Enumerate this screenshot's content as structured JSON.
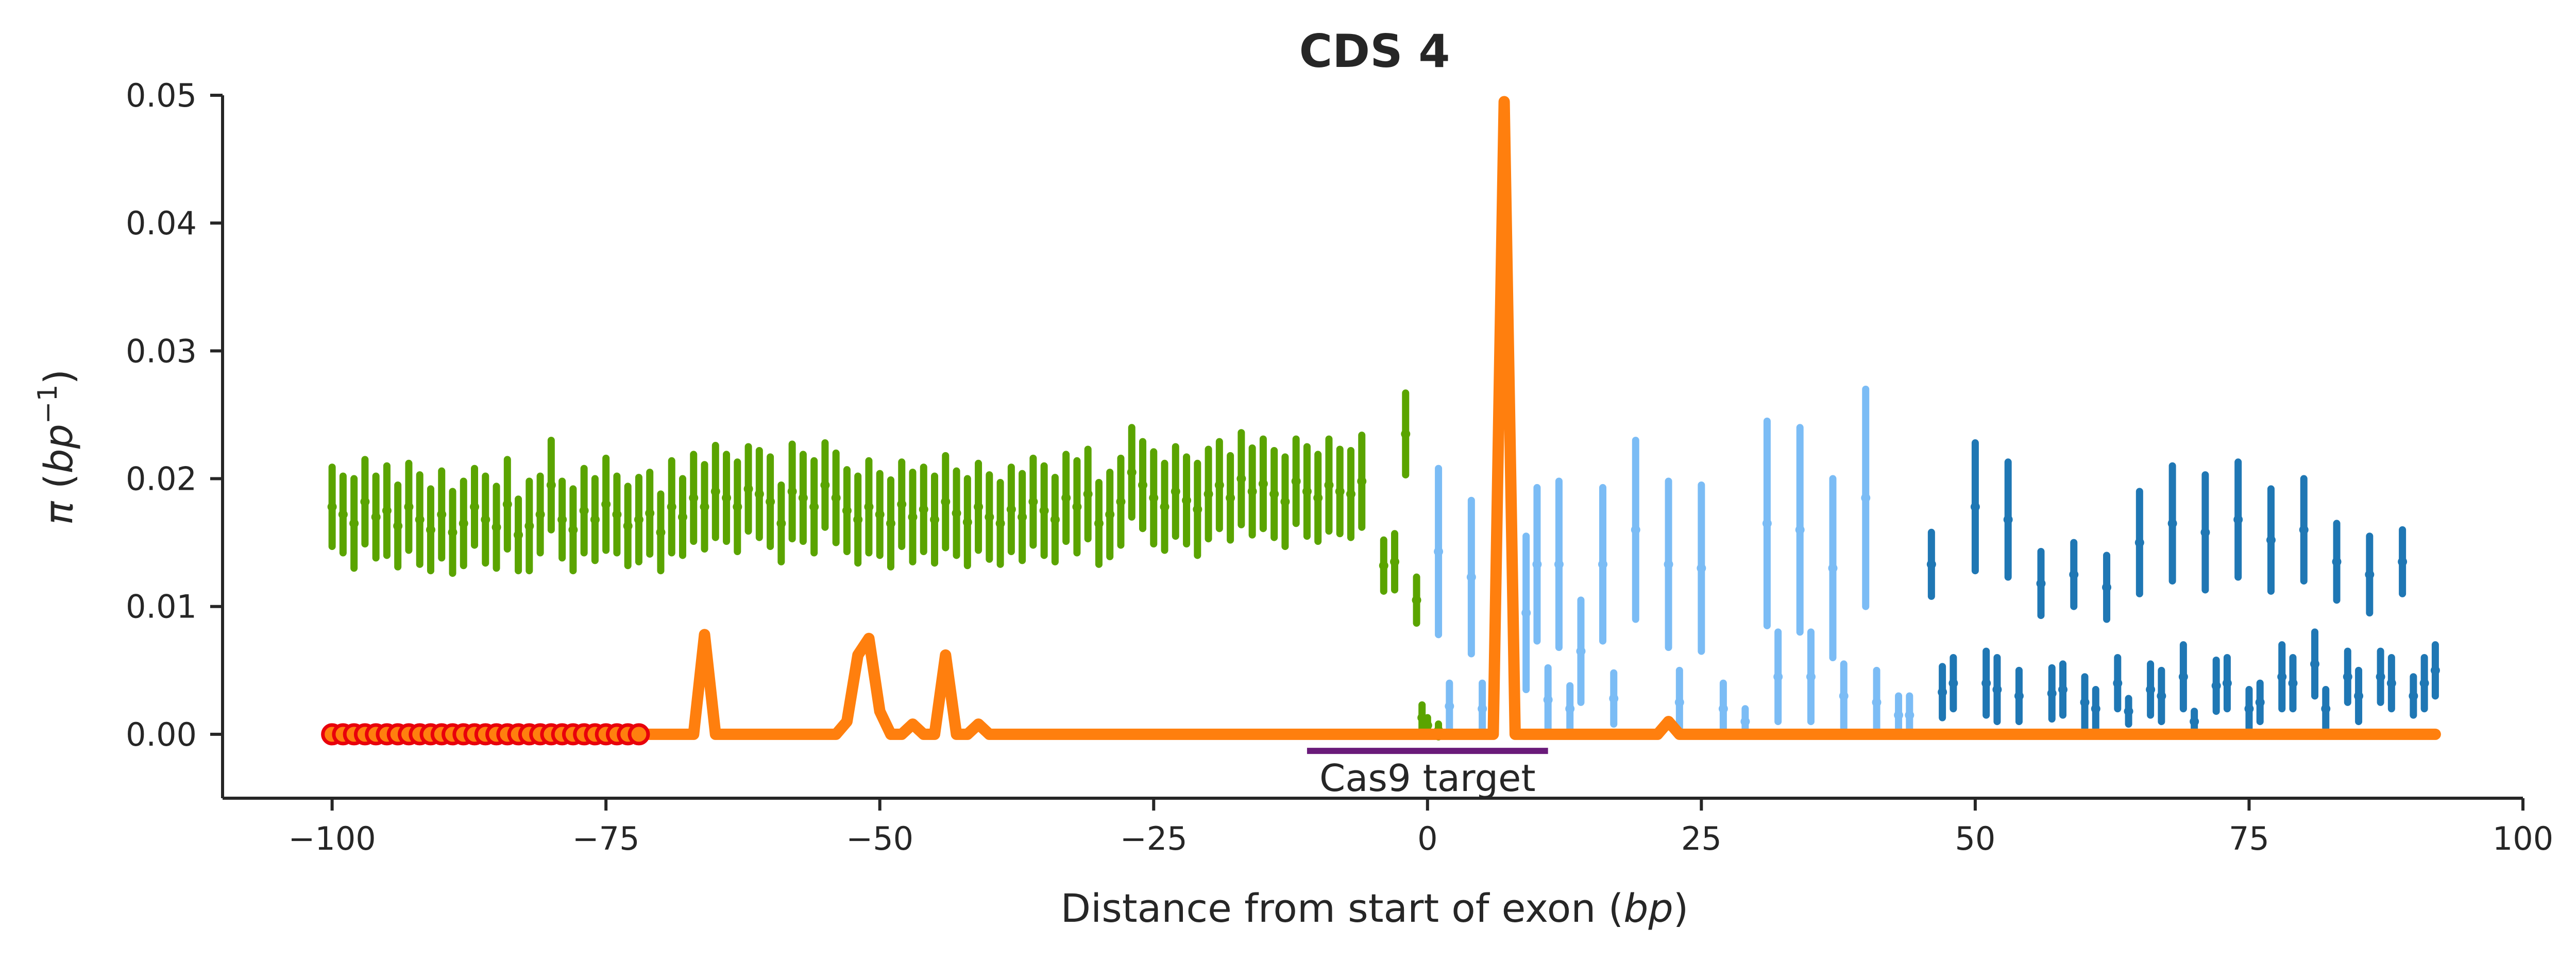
{
  "chart_data": {
    "type": "line",
    "title": "CDS 4",
    "xlabel": "Distance from start of exon (bp)",
    "xlabel_parts": {
      "main": "Distance from start of exon (",
      "unit": "bp",
      "close": ")"
    },
    "ylabel": "π (bp⁻¹)",
    "ylabel_parts": {
      "symbol": "π",
      "open": " (",
      "unit": "bp",
      "exp": "−1",
      "close": ")"
    },
    "xlim": [
      -110,
      100
    ],
    "ylim": [
      -0.005,
      0.05
    ],
    "x_ticks": [
      -100,
      -75,
      -50,
      -25,
      0,
      25,
      50,
      75,
      100
    ],
    "x_tick_labels": [
      "−100",
      "−75",
      "−50",
      "−25",
      "0",
      "25",
      "50",
      "75",
      "100"
    ],
    "y_ticks": [
      0.0,
      0.01,
      0.02,
      0.03,
      0.04,
      0.05
    ],
    "y_tick_labels": [
      "0.00",
      "0.01",
      "0.02",
      "0.03",
      "0.04",
      "0.05"
    ],
    "grid": false,
    "annotations": [
      {
        "label": "Cas9 target",
        "x_start": -11,
        "x_end": 11,
        "y": -0.0013,
        "color": "#6a1b7a"
      }
    ],
    "colors": {
      "upstream": "#5aa400",
      "exon_light": "#7bbcf5",
      "exon_dark": "#1f77b4",
      "line": "#ff7f0e",
      "marker_edge": "#e8000b",
      "marker_face": "#ff7f0e",
      "cas9": "#6a1b7a"
    },
    "series": [
      {
        "kind": "errorbar",
        "color": "#5aa400",
        "points": [
          [
            -100,
            0.0178,
            0.0031
          ],
          [
            -99,
            0.0172,
            0.003
          ],
          [
            -98,
            0.0165,
            0.0035
          ],
          [
            -97,
            0.0182,
            0.0033
          ],
          [
            -96,
            0.017,
            0.0032
          ],
          [
            -95,
            0.0175,
            0.0035
          ],
          [
            -94,
            0.0163,
            0.0032
          ],
          [
            -93,
            0.0178,
            0.0034
          ],
          [
            -92,
            0.0168,
            0.0035
          ],
          [
            -91,
            0.016,
            0.0032
          ],
          [
            -90,
            0.0172,
            0.0034
          ],
          [
            -89,
            0.0158,
            0.0032
          ],
          [
            -88,
            0.0165,
            0.0033
          ],
          [
            -87,
            0.0178,
            0.003
          ],
          [
            -86,
            0.0168,
            0.0034
          ],
          [
            -85,
            0.0162,
            0.0032
          ],
          [
            -84,
            0.018,
            0.0035
          ],
          [
            -83,
            0.0156,
            0.0028
          ],
          [
            -82,
            0.0163,
            0.0035
          ],
          [
            -81,
            0.0172,
            0.003
          ],
          [
            -80,
            0.0195,
            0.0035
          ],
          [
            -79,
            0.0168,
            0.003
          ],
          [
            -78,
            0.016,
            0.0032
          ],
          [
            -77,
            0.0175,
            0.0033
          ],
          [
            -76,
            0.0168,
            0.0032
          ],
          [
            -75,
            0.018,
            0.0036
          ],
          [
            -74,
            0.0172,
            0.003
          ],
          [
            -73,
            0.0163,
            0.0031
          ],
          [
            -72,
            0.0168,
            0.0033
          ],
          [
            -71,
            0.0173,
            0.0032
          ],
          [
            -70,
            0.0158,
            0.003
          ],
          [
            -69,
            0.0178,
            0.0036
          ],
          [
            -68,
            0.017,
            0.003
          ],
          [
            -67,
            0.0185,
            0.0034
          ],
          [
            -66,
            0.0178,
            0.0033
          ],
          [
            -65,
            0.019,
            0.0036
          ],
          [
            -64,
            0.0185,
            0.0034
          ],
          [
            -63,
            0.0178,
            0.0035
          ],
          [
            -62,
            0.0192,
            0.0033
          ],
          [
            -61,
            0.0188,
            0.0034
          ],
          [
            -60,
            0.0182,
            0.0035
          ],
          [
            -59,
            0.0165,
            0.003
          ],
          [
            -58,
            0.019,
            0.0037
          ],
          [
            -57,
            0.0185,
            0.0034
          ],
          [
            -56,
            0.0178,
            0.0036
          ],
          [
            -55,
            0.0195,
            0.0033
          ],
          [
            -54,
            0.0185,
            0.0035
          ],
          [
            -53,
            0.0175,
            0.0032
          ],
          [
            -52,
            0.0168,
            0.0034
          ],
          [
            -51,
            0.0178,
            0.0036
          ],
          [
            -50,
            0.0172,
            0.0032
          ],
          [
            -49,
            0.0165,
            0.0034
          ],
          [
            -48,
            0.018,
            0.0033
          ],
          [
            -47,
            0.017,
            0.0035
          ],
          [
            -46,
            0.0176,
            0.0033
          ],
          [
            -45,
            0.0168,
            0.0034
          ],
          [
            -44,
            0.0182,
            0.0036
          ],
          [
            -43,
            0.0173,
            0.0033
          ],
          [
            -42,
            0.0166,
            0.0034
          ],
          [
            -41,
            0.0178,
            0.0034
          ],
          [
            -40,
            0.017,
            0.0033
          ],
          [
            -39,
            0.0165,
            0.0032
          ],
          [
            -38,
            0.0176,
            0.0033
          ],
          [
            -37,
            0.017,
            0.0034
          ],
          [
            -36,
            0.0182,
            0.0034
          ],
          [
            -35,
            0.0175,
            0.0035
          ],
          [
            -34,
            0.0168,
            0.0033
          ],
          [
            -33,
            0.0185,
            0.0034
          ],
          [
            -32,
            0.0178,
            0.0036
          ],
          [
            -31,
            0.0188,
            0.0035
          ],
          [
            -30,
            0.0165,
            0.0032
          ],
          [
            -29,
            0.0172,
            0.0033
          ],
          [
            -28,
            0.0182,
            0.0034
          ],
          [
            -27,
            0.0205,
            0.0035
          ],
          [
            -26,
            0.0195,
            0.0034
          ],
          [
            -25,
            0.0185,
            0.0036
          ],
          [
            -24,
            0.0178,
            0.0034
          ],
          [
            -23,
            0.019,
            0.0035
          ],
          [
            -22,
            0.0183,
            0.0034
          ],
          [
            -21,
            0.0176,
            0.0036
          ],
          [
            -20,
            0.0188,
            0.0035
          ],
          [
            -19,
            0.0195,
            0.0034
          ],
          [
            -18,
            0.0185,
            0.0033
          ],
          [
            -17,
            0.02,
            0.0036
          ],
          [
            -16,
            0.019,
            0.0034
          ],
          [
            -15,
            0.0196,
            0.0035
          ],
          [
            -14,
            0.0188,
            0.0034
          ],
          [
            -13,
            0.0182,
            0.0035
          ],
          [
            -12,
            0.0198,
            0.0033
          ],
          [
            -11,
            0.019,
            0.0035
          ],
          [
            -10,
            0.0185,
            0.0034
          ],
          [
            -9,
            0.0195,
            0.0036
          ],
          [
            -8,
            0.019,
            0.0033
          ],
          [
            -7,
            0.0188,
            0.0034
          ],
          [
            -6,
            0.0198,
            0.0036
          ],
          [
            -4,
            0.0132,
            0.002
          ],
          [
            -3,
            0.0135,
            0.0022
          ],
          [
            -2,
            0.0235,
            0.0032
          ],
          [
            -1,
            0.0105,
            0.0018
          ],
          [
            -0.5,
            0.0013,
            0.001
          ],
          [
            0,
            0.0007,
            0.0006
          ],
          [
            1,
            0.0003,
            0.0005
          ]
        ]
      },
      {
        "kind": "errorbar",
        "color": "#7bbcf5",
        "points": [
          [
            1,
            0.0143,
            0.0065
          ],
          [
            2,
            0.0022,
            0.0018
          ],
          [
            4,
            0.0123,
            0.006
          ],
          [
            5,
            0.002,
            0.002
          ],
          [
            8,
            0.001,
            0.001
          ],
          [
            9,
            0.0095,
            0.006
          ],
          [
            10,
            0.0133,
            0.006
          ],
          [
            11,
            0.0027,
            0.0025
          ],
          [
            12,
            0.0133,
            0.0065
          ],
          [
            13,
            0.002,
            0.0018
          ],
          [
            14,
            0.0065,
            0.004
          ],
          [
            16,
            0.0133,
            0.006
          ],
          [
            17,
            0.0028,
            0.002
          ],
          [
            19,
            0.016,
            0.007
          ],
          [
            22,
            0.0133,
            0.0065
          ],
          [
            23,
            0.0025,
            0.0025
          ],
          [
            25,
            0.013,
            0.0065
          ],
          [
            27,
            0.002,
            0.002
          ],
          [
            29,
            0.001,
            0.001
          ],
          [
            31,
            0.0165,
            0.008
          ],
          [
            32,
            0.0045,
            0.0035
          ],
          [
            34,
            0.016,
            0.008
          ],
          [
            35,
            0.0045,
            0.0035
          ],
          [
            37,
            0.013,
            0.007
          ],
          [
            38,
            0.003,
            0.0025
          ],
          [
            40,
            0.0185,
            0.0085
          ],
          [
            41,
            0.0025,
            0.0025
          ],
          [
            43,
            0.0015,
            0.0015
          ],
          [
            44,
            0.0015,
            0.0015
          ]
        ]
      },
      {
        "kind": "errorbar",
        "color": "#1f77b4",
        "points": [
          [
            46,
            0.0133,
            0.0025
          ],
          [
            47,
            0.0033,
            0.002
          ],
          [
            48,
            0.004,
            0.002
          ],
          [
            50,
            0.0178,
            0.005
          ],
          [
            51,
            0.004,
            0.0025
          ],
          [
            52,
            0.0035,
            0.0025
          ],
          [
            53,
            0.0168,
            0.0045
          ],
          [
            54,
            0.003,
            0.002
          ],
          [
            56,
            0.0118,
            0.0025
          ],
          [
            57,
            0.0032,
            0.002
          ],
          [
            58,
            0.0035,
            0.002
          ],
          [
            59,
            0.0125,
            0.0025
          ],
          [
            60,
            0.0025,
            0.002
          ],
          [
            61,
            0.002,
            0.0015
          ],
          [
            62,
            0.0115,
            0.0025
          ],
          [
            63,
            0.004,
            0.002
          ],
          [
            64,
            0.0018,
            0.001
          ],
          [
            65,
            0.015,
            0.004
          ],
          [
            66,
            0.0035,
            0.002
          ],
          [
            67,
            0.003,
            0.002
          ],
          [
            68,
            0.0165,
            0.0045
          ],
          [
            69,
            0.0045,
            0.0025
          ],
          [
            70,
            0.001,
            0.0008
          ],
          [
            71,
            0.0158,
            0.0045
          ],
          [
            72,
            0.0038,
            0.002
          ],
          [
            73,
            0.004,
            0.002
          ],
          [
            74,
            0.0168,
            0.0045
          ],
          [
            75,
            0.002,
            0.0015
          ],
          [
            76,
            0.0025,
            0.0015
          ],
          [
            77,
            0.0152,
            0.004
          ],
          [
            78,
            0.0045,
            0.0025
          ],
          [
            79,
            0.004,
            0.002
          ],
          [
            80,
            0.016,
            0.004
          ],
          [
            81,
            0.0055,
            0.0025
          ],
          [
            82,
            0.002,
            0.0015
          ],
          [
            83,
            0.0135,
            0.003
          ],
          [
            84,
            0.0045,
            0.002
          ],
          [
            85,
            0.003,
            0.002
          ],
          [
            86,
            0.0125,
            0.003
          ],
          [
            87,
            0.0045,
            0.002
          ],
          [
            88,
            0.004,
            0.002
          ],
          [
            89,
            0.0135,
            0.0025
          ],
          [
            90,
            0.003,
            0.0015
          ],
          [
            91,
            0.004,
            0.002
          ],
          [
            92,
            0.005,
            0.002
          ]
        ]
      },
      {
        "kind": "line",
        "color": "#ff7f0e",
        "points": [
          [
            -100,
            0
          ],
          [
            -72,
            0
          ],
          [
            -67,
            0
          ],
          [
            -66,
            0.0078
          ],
          [
            -65,
            0
          ],
          [
            -54,
            0
          ],
          [
            -53,
            0.001
          ],
          [
            -52,
            0.0062
          ],
          [
            -51,
            0.0075
          ],
          [
            -50,
            0.0018
          ],
          [
            -49,
            0
          ],
          [
            -48,
            0
          ],
          [
            -47,
            0.0008
          ],
          [
            -46,
            0
          ],
          [
            -45,
            0
          ],
          [
            -44,
            0.0062
          ],
          [
            -43,
            0
          ],
          [
            -42,
            0
          ],
          [
            -41,
            0.0008
          ],
          [
            -40,
            0
          ],
          [
            6,
            0
          ],
          [
            7,
            0.0495
          ],
          [
            8,
            0
          ],
          [
            21,
            0
          ],
          [
            22,
            0.001
          ],
          [
            23,
            0
          ],
          [
            92,
            0
          ]
        ]
      },
      {
        "kind": "markers",
        "x": [
          -100,
          -99,
          -98,
          -97,
          -96,
          -95,
          -94,
          -93,
          -92,
          -91,
          -90,
          -89,
          -88,
          -87,
          -86,
          -85,
          -84,
          -83,
          -82,
          -81,
          -80,
          -79,
          -78,
          -77,
          -76,
          -75,
          -74,
          -73,
          -72
        ],
        "y": 0
      }
    ]
  }
}
